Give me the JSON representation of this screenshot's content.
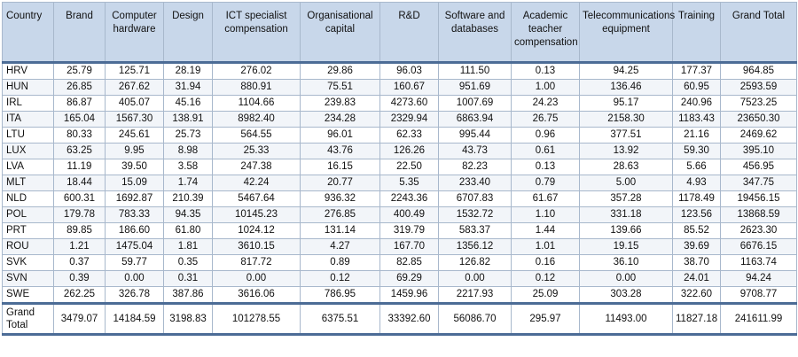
{
  "table": {
    "headers": [
      "Country",
      "Brand",
      "Computer hardware",
      "Design",
      "ICT specialist compensation",
      "Organisational capital",
      "R&D",
      "Software and databases",
      "Academic teacher compensation",
      "Telecommunications equipment",
      "Training",
      "Grand Total"
    ],
    "rows": [
      [
        "HRV",
        "25.79",
        "125.71",
        "28.19",
        "276.02",
        "29.86",
        "96.03",
        "111.50",
        "0.13",
        "94.25",
        "177.37",
        "964.85"
      ],
      [
        "HUN",
        "26.85",
        "267.62",
        "31.94",
        "880.91",
        "75.51",
        "160.67",
        "951.69",
        "1.00",
        "136.46",
        "60.95",
        "2593.59"
      ],
      [
        "IRL",
        "86.87",
        "405.07",
        "45.16",
        "1104.66",
        "239.83",
        "4273.60",
        "1007.69",
        "24.23",
        "95.17",
        "240.96",
        "7523.25"
      ],
      [
        "ITA",
        "165.04",
        "1567.30",
        "138.91",
        "8982.40",
        "234.28",
        "2329.94",
        "6863.94",
        "26.75",
        "2158.30",
        "1183.43",
        "23650.30"
      ],
      [
        "LTU",
        "80.33",
        "245.61",
        "25.73",
        "564.55",
        "96.01",
        "62.33",
        "995.44",
        "0.96",
        "377.51",
        "21.16",
        "2469.62"
      ],
      [
        "LUX",
        "63.25",
        "9.95",
        "8.98",
        "25.33",
        "43.76",
        "126.26",
        "43.73",
        "0.61",
        "13.92",
        "59.30",
        "395.10"
      ],
      [
        "LVA",
        "11.19",
        "39.50",
        "3.58",
        "247.38",
        "16.15",
        "22.50",
        "82.23",
        "0.13",
        "28.63",
        "5.66",
        "456.95"
      ],
      [
        "MLT",
        "18.44",
        "15.09",
        "1.74",
        "42.24",
        "20.77",
        "5.35",
        "233.40",
        "0.79",
        "5.00",
        "4.93",
        "347.75"
      ],
      [
        "NLD",
        "600.31",
        "1692.87",
        "210.39",
        "5467.64",
        "936.32",
        "2243.36",
        "6707.83",
        "61.67",
        "357.28",
        "1178.49",
        "19456.15"
      ],
      [
        "POL",
        "179.78",
        "783.33",
        "94.35",
        "10145.23",
        "276.85",
        "400.49",
        "1532.72",
        "1.10",
        "331.18",
        "123.56",
        "13868.59"
      ],
      [
        "PRT",
        "89.85",
        "186.60",
        "61.80",
        "1024.12",
        "131.14",
        "319.79",
        "583.37",
        "1.44",
        "139.66",
        "85.52",
        "2623.30"
      ],
      [
        "ROU",
        "1.21",
        "1475.04",
        "1.81",
        "3610.15",
        "4.27",
        "167.70",
        "1356.12",
        "1.01",
        "19.15",
        "39.69",
        "6676.15"
      ],
      [
        "SVK",
        "0.37",
        "59.77",
        "0.35",
        "817.72",
        "0.89",
        "82.85",
        "126.82",
        "0.16",
        "36.10",
        "38.70",
        "1163.74"
      ],
      [
        "SVN",
        "0.39",
        "0.00",
        "0.31",
        "0.00",
        "0.12",
        "69.29",
        "0.00",
        "0.12",
        "0.00",
        "24.01",
        "94.24"
      ],
      [
        "SWE",
        "262.25",
        "326.78",
        "387.86",
        "3616.06",
        "786.95",
        "1459.96",
        "2217.93",
        "25.09",
        "303.28",
        "322.60",
        "9708.77"
      ]
    ],
    "total": [
      "Grand Total",
      "3479.07",
      "14184.59",
      "3198.83",
      "101278.55",
      "6375.51",
      "33392.60",
      "56086.70",
      "295.97",
      "11493.00",
      "11827.18",
      "241611.99"
    ]
  }
}
